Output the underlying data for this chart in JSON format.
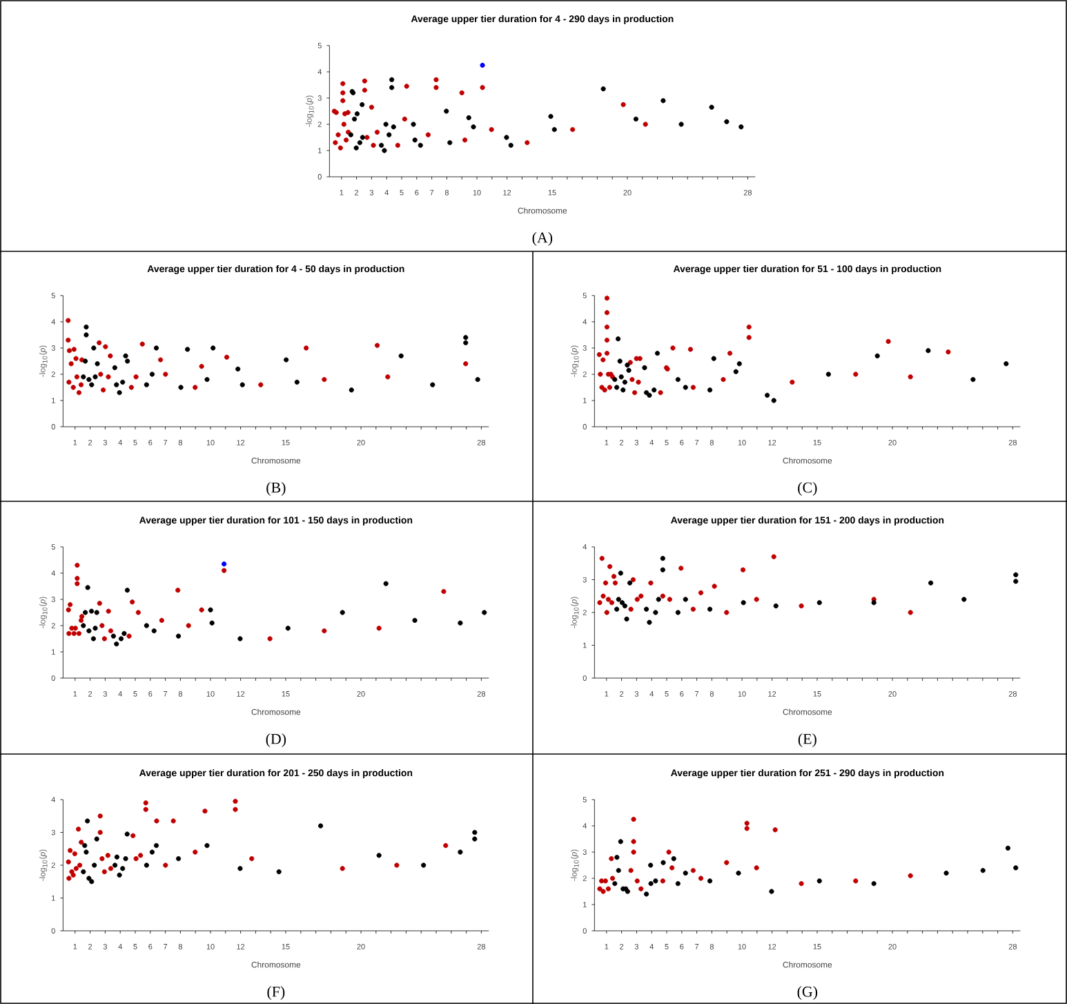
{
  "chart_data": [
    {
      "type": "scatter",
      "title": "Average upper tier duration for 4 - 290 days in production",
      "xlabel": "Chromosome",
      "ylabel": "-log$_{10}$(*p*)",
      "annotations": [
        "(A)"
      ],
      "marker": "circle",
      "xlim": [
        0.2,
        28.5
      ],
      "ylim": [
        0,
        5
      ],
      "yticks": [
        0,
        1,
        2,
        3,
        4,
        5
      ],
      "xticks": [
        1,
        2,
        3,
        4,
        5,
        6,
        7,
        8,
        {
          "value": 9,
          "label": null
        },
        10,
        {
          "value": 11,
          "label": null
        },
        12,
        {
          "value": 13,
          "label": null
        },
        {
          "value": 14,
          "label": null
        },
        15,
        {
          "value": 16,
          "label": null
        },
        {
          "value": 17,
          "label": null
        },
        {
          "value": 18,
          "label": null
        },
        {
          "value": 19,
          "label": null
        },
        20,
        {
          "value": 21,
          "label": null
        },
        {
          "value": 22,
          "label": null
        },
        {
          "value": 23,
          "label": null
        },
        {
          "value": 24,
          "label": null
        },
        {
          "value": 25,
          "label": null
        },
        {
          "value": 26,
          "label": null
        },
        {
          "value": 27,
          "label": null
        },
        28
      ],
      "series": [
        {
          "color": "#c00000",
          "x": [
            0.52,
            0.65,
            1.09,
            1.09,
            1.09,
            1.22,
            1.43,
            2.54,
            2.54,
            3.0,
            5.33,
            7.29,
            7.29,
            9.0,
            10.37,
            19.73,
            0.59,
            0.78,
            0.93,
            1.16,
            1.31,
            1.45,
            2.7,
            3.12,
            3.37,
            4.74,
            5.2,
            6.76,
            9.2,
            10.97,
            13.34,
            16.36,
            21.2
          ],
          "values": [
            2.5,
            2.45,
            3.55,
            3.2,
            2.9,
            2.4,
            2.45,
            3.65,
            3.3,
            2.65,
            3.45,
            3.7,
            3.4,
            3.2,
            3.4,
            2.75,
            1.3,
            1.6,
            1.1,
            2.0,
            1.4,
            1.7,
            1.5,
            1.2,
            1.7,
            1.2,
            2.2,
            1.6,
            1.4,
            1.8,
            1.3,
            1.8,
            2.0
          ]
        },
        {
          "color": "#000000",
          "x": [
            1.71,
            1.77,
            2.04,
            2.37,
            4.34,
            4.34,
            3.95,
            5.78,
            7.97,
            9.46,
            14.91,
            18.4,
            22.38,
            25.6,
            27.56,
            1.62,
            1.86,
            1.98,
            2.22,
            2.4,
            3.65,
            3.85,
            4.16,
            4.46,
            5.88,
            6.25,
            8.2,
            9.77,
            11.97,
            12.26,
            15.15,
            20.57,
            23.58,
            26.6
          ],
          "values": [
            3.25,
            3.2,
            2.4,
            2.75,
            3.7,
            3.4,
            2.0,
            2.0,
            2.5,
            2.25,
            2.3,
            3.35,
            2.9,
            2.65,
            1.9,
            1.6,
            2.2,
            1.1,
            1.3,
            1.5,
            1.2,
            1.0,
            1.6,
            1.9,
            1.4,
            1.2,
            1.3,
            1.9,
            1.5,
            1.2,
            1.8,
            2.2,
            2.0,
            2.1
          ]
        },
        {
          "color": "#0000ff",
          "x": [
            10.37
          ],
          "values": [
            4.25
          ]
        }
      ]
    },
    {
      "type": "scatter",
      "title": "Average upper tier duration for 4 - 50 days in production",
      "xlabel": "Chromosome",
      "ylabel": "-log$_{10}$(*p*)",
      "annotations": [
        "(B)"
      ],
      "marker": "circle",
      "xlim": [
        0.2,
        28.5
      ],
      "ylim": [
        0,
        5
      ],
      "yticks": [
        0,
        1,
        2,
        3,
        4,
        5
      ],
      "xticks": [
        1,
        2,
        3,
        4,
        5,
        6,
        7,
        8,
        {
          "value": 9,
          "label": null
        },
        10,
        {
          "value": 11,
          "label": null
        },
        12,
        {
          "value": 13,
          "label": null
        },
        {
          "value": 14,
          "label": null
        },
        15,
        {
          "value": 16,
          "label": null
        },
        {
          "value": 17,
          "label": null
        },
        {
          "value": 18,
          "label": null
        },
        {
          "value": 19,
          "label": null
        },
        20,
        {
          "value": 21,
          "label": null
        },
        {
          "value": 22,
          "label": null
        },
        {
          "value": 23,
          "label": null
        },
        {
          "value": 24,
          "label": null
        },
        {
          "value": 25,
          "label": null
        },
        {
          "value": 26,
          "label": null
        },
        {
          "value": 27,
          "label": null
        },
        28
      ],
      "series": [
        {
          "color": "#c00000",
          "x": [
            0.54,
            0.54,
            0.62,
            0.93,
            1.06,
            1.45,
            2.6,
            3.02,
            3.34,
            5.47,
            6.68,
            9.41,
            11.08,
            16.36,
            21.08,
            26.96,
            0.59,
            0.74,
            0.88,
            1.12,
            1.26,
            1.4,
            2.7,
            2.87,
            3.21,
            4.74,
            5.05,
            7.01,
            8.98,
            13.34,
            17.56,
            21.78
          ],
          "values": [
            4.05,
            3.3,
            2.9,
            2.95,
            2.6,
            2.55,
            3.2,
            3.05,
            2.7,
            3.15,
            2.55,
            2.3,
            2.65,
            3.0,
            3.1,
            2.4,
            1.7,
            2.4,
            1.5,
            1.9,
            1.3,
            1.6,
            2.0,
            1.4,
            1.9,
            1.5,
            1.9,
            2.0,
            1.5,
            1.6,
            1.8,
            1.9
          ]
        },
        {
          "color": "#000000",
          "x": [
            1.74,
            1.74,
            2.24,
            2.48,
            3.64,
            4.36,
            4.48,
            6.4,
            8.47,
            10.17,
            11.82,
            15.03,
            22.67,
            26.96,
            26.96,
            1.55,
            1.68,
            1.92,
            2.1,
            2.34,
            3.75,
            3.95,
            4.16,
            5.75,
            6.12,
            8.03,
            9.77,
            12.12,
            15.75,
            19.37,
            24.76,
            27.76
          ],
          "values": [
            3.8,
            3.5,
            3.0,
            2.4,
            2.25,
            2.7,
            2.5,
            3.0,
            2.95,
            3.0,
            2.2,
            2.55,
            2.7,
            3.4,
            3.2,
            1.9,
            2.5,
            1.8,
            1.6,
            1.9,
            1.6,
            1.3,
            1.7,
            1.6,
            2.0,
            1.5,
            1.8,
            1.6,
            1.7,
            1.4,
            1.6,
            1.8
          ]
        }
      ]
    },
    {
      "type": "scatter",
      "title": "Average upper tier duration for 51 - 100 days in production",
      "xlabel": "Chromosome",
      "ylabel": "-log$_{10}$(*p*)",
      "annotations": [
        "(C)"
      ],
      "marker": "circle",
      "xlim": [
        0.2,
        28.5
      ],
      "ylim": [
        0,
        5
      ],
      "yticks": [
        0,
        1,
        2,
        3,
        4,
        5
      ],
      "xticks": [
        1,
        2,
        3,
        4,
        5,
        6,
        7,
        8,
        {
          "value": 9,
          "label": null
        },
        10,
        {
          "value": 11,
          "label": null
        },
        12,
        {
          "value": 13,
          "label": null
        },
        {
          "value": 14,
          "label": null
        },
        15,
        {
          "value": 16,
          "label": null
        },
        {
          "value": 17,
          "label": null
        },
        {
          "value": 18,
          "label": null
        },
        {
          "value": 19,
          "label": null
        },
        20,
        {
          "value": 21,
          "label": null
        },
        {
          "value": 22,
          "label": null
        },
        {
          "value": 23,
          "label": null
        },
        {
          "value": 24,
          "label": null
        },
        {
          "value": 25,
          "label": null
        },
        {
          "value": 26,
          "label": null
        },
        {
          "value": 27,
          "label": null
        },
        28
      ],
      "series": [
        {
          "color": "#c00000",
          "x": [
            0.52,
            0.77,
            1.03,
            1.03,
            1.03,
            1.03,
            1.03,
            1.29,
            2.58,
            2.99,
            3.22,
            4.98,
            5.41,
            6.58,
            9.2,
            10.47,
            10.47,
            19.73,
            23.71,
            0.59,
            0.69,
            0.88,
            1.12,
            1.21,
            1.4,
            2.7,
            2.87,
            3.12,
            4.59,
            5.05,
            6.76,
            8.76,
            13.34,
            17.56,
            21.2
          ],
          "values": [
            2.75,
            2.55,
            4.9,
            4.35,
            3.8,
            3.3,
            2.8,
            2.0,
            2.45,
            2.6,
            2.6,
            2.25,
            3.0,
            2.95,
            2.8,
            3.8,
            3.4,
            3.25,
            2.85,
            2.0,
            1.5,
            1.4,
            2.0,
            1.5,
            1.9,
            1.8,
            1.3,
            1.7,
            1.3,
            2.2,
            1.5,
            1.8,
            1.7,
            2.0,
            1.9
          ]
        },
        {
          "color": "#000000",
          "x": [
            1.77,
            1.89,
            2.38,
            2.48,
            3.53,
            4.38,
            8.13,
            9.83,
            19.0,
            22.38,
            27.56,
            1.55,
            1.68,
            1.98,
            2.1,
            2.22,
            3.65,
            3.85,
            4.16,
            5.75,
            6.25,
            7.87,
            9.6,
            11.68,
            12.12,
            15.75,
            25.36
          ],
          "values": [
            3.35,
            2.5,
            2.35,
            2.15,
            2.25,
            2.8,
            2.6,
            2.4,
            2.7,
            2.9,
            2.4,
            1.8,
            1.5,
            1.9,
            1.4,
            1.7,
            1.3,
            1.2,
            1.4,
            1.8,
            1.5,
            1.4,
            2.1,
            1.2,
            1.0,
            2.0,
            1.8
          ]
        }
      ]
    },
    {
      "type": "scatter",
      "title": "Average upper tier duration for 101 - 150 days in production",
      "xlabel": "Chromosome",
      "ylabel": "-log$_{10}$(*p*)",
      "annotations": [
        "(D)"
      ],
      "marker": "circle",
      "xlim": [
        0.2,
        28.5
      ],
      "ylim": [
        0,
        5
      ],
      "yticks": [
        0,
        1,
        2,
        3,
        4,
        5
      ],
      "xticks": [
        1,
        2,
        3,
        4,
        5,
        6,
        7,
        8,
        {
          "value": 9,
          "label": null
        },
        10,
        {
          "value": 11,
          "label": null
        },
        12,
        {
          "value": 13,
          "label": null
        },
        {
          "value": 14,
          "label": null
        },
        15,
        {
          "value": 16,
          "label": null
        },
        {
          "value": 17,
          "label": null
        },
        {
          "value": 18,
          "label": null
        },
        {
          "value": 19,
          "label": null
        },
        20,
        {
          "value": 21,
          "label": null
        },
        {
          "value": 22,
          "label": null
        },
        {
          "value": 23,
          "label": null
        },
        {
          "value": 24,
          "label": null
        },
        {
          "value": 25,
          "label": null
        },
        {
          "value": 26,
          "label": null
        },
        {
          "value": 27,
          "label": null
        },
        28
      ],
      "series": [
        {
          "color": "#c00000",
          "x": [
            0.56,
            0.67,
            1.14,
            1.14,
            1.14,
            1.45,
            2.63,
            3.22,
            4.8,
            7.83,
            10.9,
            25.5,
            0.59,
            0.78,
            0.93,
            1.02,
            1.26,
            1.4,
            2.79,
            2.95,
            3.37,
            4.59,
            5.2,
            6.76,
            8.54,
            9.41,
            13.95,
            17.56,
            21.2
          ],
          "values": [
            2.6,
            2.8,
            4.3,
            3.8,
            3.6,
            2.35,
            2.85,
            2.55,
            2.9,
            3.35,
            4.1,
            3.3,
            1.7,
            1.9,
            1.7,
            1.9,
            1.7,
            2.2,
            2.0,
            1.5,
            1.8,
            1.6,
            2.5,
            2.2,
            2.0,
            2.6,
            1.5,
            1.8,
            1.9
          ]
        },
        {
          "color": "#000000",
          "x": [
            1.84,
            2.09,
            2.44,
            4.47,
            10.0,
            21.66,
            28.2,
            1.55,
            1.68,
            1.92,
            2.22,
            2.34,
            3.55,
            3.75,
            4.06,
            4.26,
            5.75,
            6.25,
            7.87,
            10.1,
            11.97,
            15.15,
            18.77,
            23.58,
            26.6
          ],
          "values": [
            3.45,
            2.55,
            2.5,
            3.35,
            2.6,
            3.6,
            2.5,
            2.0,
            2.5,
            1.8,
            1.5,
            1.9,
            1.6,
            1.3,
            1.5,
            1.7,
            2.0,
            1.8,
            1.6,
            2.1,
            1.5,
            1.9,
            2.5,
            2.2,
            2.1
          ]
        },
        {
          "color": "#0000ff",
          "x": [
            10.9
          ],
          "values": [
            4.35
          ]
        }
      ]
    },
    {
      "type": "scatter",
      "title": "Average upper tier duration for 151 - 200 days in production",
      "xlabel": "Chromosome",
      "ylabel": "-log$_{10}$(*p*)",
      "annotations": [
        "(E)"
      ],
      "marker": "circle",
      "xlim": [
        0.2,
        28.5
      ],
      "ylim": [
        0,
        4
      ],
      "yticks": [
        0,
        1,
        2,
        3,
        4
      ],
      "xticks": [
        1,
        2,
        3,
        4,
        5,
        6,
        7,
        8,
        {
          "value": 9,
          "label": null
        },
        10,
        {
          "value": 11,
          "label": null
        },
        12,
        {
          "value": 13,
          "label": null
        },
        {
          "value": 14,
          "label": null
        },
        15,
        {
          "value": 16,
          "label": null
        },
        {
          "value": 17,
          "label": null
        },
        {
          "value": 18,
          "label": null
        },
        {
          "value": 19,
          "label": null
        },
        20,
        {
          "value": 21,
          "label": null
        },
        {
          "value": 22,
          "label": null
        },
        {
          "value": 23,
          "label": null
        },
        {
          "value": 24,
          "label": null
        },
        {
          "value": 25,
          "label": null
        },
        {
          "value": 26,
          "label": null
        },
        {
          "value": 27,
          "label": null
        },
        28
      ],
      "series": [
        {
          "color": "#c00000",
          "x": [
            0.7,
            0.94,
            1.22,
            1.49,
            1.58,
            2.77,
            3.94,
            5.95,
            8.17,
            10.07,
            12.12,
            0.55,
            0.78,
            1.02,
            1.12,
            1.35,
            2.62,
            3.04,
            3.29,
            4.74,
            5.2,
            6.76,
            7.27,
            8.98,
            10.97,
            13.95,
            18.77,
            21.2
          ],
          "values": [
            3.65,
            2.9,
            3.4,
            3.1,
            2.9,
            3.0,
            2.9,
            3.35,
            2.8,
            3.3,
            3.7,
            2.3,
            2.5,
            2.0,
            2.4,
            2.3,
            2.1,
            2.4,
            2.5,
            2.5,
            2.4,
            2.1,
            2.6,
            2.0,
            2.4,
            2.2,
            2.4,
            2.0
          ]
        },
        {
          "color": "#000000",
          "x": [
            1.94,
            2.55,
            4.74,
            4.74,
            22.55,
            28.2,
            28.2,
            1.68,
            1.8,
            2.04,
            2.22,
            2.34,
            3.65,
            3.85,
            4.26,
            4.46,
            5.75,
            6.25,
            7.87,
            10.1,
            12.26,
            15.15,
            18.77,
            24.76
          ],
          "values": [
            3.2,
            2.9,
            3.65,
            3.3,
            2.9,
            3.15,
            2.95,
            2.1,
            2.4,
            2.3,
            2.2,
            1.8,
            2.1,
            1.7,
            2.0,
            2.4,
            2.0,
            2.4,
            2.1,
            2.3,
            2.2,
            2.3,
            2.3,
            2.4
          ]
        }
      ]
    },
    {
      "type": "scatter",
      "title": "Average upper tier duration for 201 - 250 days in production",
      "xlabel": "Chromosome",
      "ylabel": "-log$_{10}$(*p*)",
      "annotations": [
        "(F)"
      ],
      "marker": "circle",
      "xlim": [
        0.2,
        28.5
      ],
      "ylim": [
        0,
        4
      ],
      "yticks": [
        0,
        1,
        2,
        3,
        4
      ],
      "xticks": [
        1,
        2,
        3,
        4,
        5,
        6,
        7,
        8,
        {
          "value": 9,
          "label": null
        },
        10,
        {
          "value": 11,
          "label": null
        },
        12,
        {
          "value": 13,
          "label": null
        },
        {
          "value": 14,
          "label": null
        },
        15,
        {
          "value": 16,
          "label": null
        },
        {
          "value": 17,
          "label": null
        },
        {
          "value": 18,
          "label": null
        },
        {
          "value": 19,
          "label": null
        },
        20,
        {
          "value": 21,
          "label": null
        },
        {
          "value": 22,
          "label": null
        },
        {
          "value": 23,
          "label": null
        },
        {
          "value": 24,
          "label": null
        },
        {
          "value": 25,
          "label": null
        },
        {
          "value": 26,
          "label": null
        },
        {
          "value": 27,
          "label": null
        },
        28
      ],
      "series": [
        {
          "color": "#c00000",
          "x": [
            0.56,
            0.67,
            0.98,
            1.22,
            1.41,
            2.67,
            2.67,
            3.18,
            4.85,
            5.7,
            5.7,
            6.42,
            7.53,
            9.63,
            11.65,
            11.65,
            25.63,
            0.59,
            0.78,
            0.88,
            1.07,
            1.31,
            2.79,
            2.95,
            3.37,
            5.05,
            5.35,
            7.01,
            8.98,
            12.74,
            18.77,
            22.38
          ],
          "values": [
            2.1,
            2.45,
            2.35,
            3.1,
            2.7,
            3.5,
            3.0,
            2.3,
            2.9,
            3.9,
            3.7,
            3.35,
            3.35,
            3.65,
            3.95,
            3.7,
            2.6,
            1.6,
            1.8,
            1.7,
            1.9,
            2.0,
            2.2,
            1.8,
            1.9,
            2.2,
            2.3,
            2.0,
            2.4,
            2.2,
            1.9,
            2.0
          ]
        },
        {
          "color": "#000000",
          "x": [
            1.82,
            1.64,
            2.44,
            3.78,
            4.46,
            6.4,
            17.32,
            27.56,
            27.56,
            1.55,
            1.74,
            1.92,
            2.1,
            2.28,
            3.65,
            3.95,
            4.16,
            4.36,
            5.75,
            6.12,
            7.87,
            9.77,
            11.97,
            14.55,
            21.2,
            24.16,
            26.6
          ],
          "values": [
            3.35,
            2.6,
            2.8,
            2.25,
            2.95,
            2.6,
            3.2,
            3.0,
            2.8,
            1.8,
            2.4,
            1.6,
            1.5,
            2.0,
            2.0,
            1.7,
            1.9,
            2.2,
            2.0,
            2.4,
            2.2,
            2.6,
            1.9,
            1.8,
            2.3,
            2.0,
            2.4
          ]
        }
      ]
    },
    {
      "type": "scatter",
      "title": "Average upper tier duration for 251 - 290 days in production",
      "xlabel": "Chromosome",
      "ylabel": "-log$_{10}$(*p*)",
      "annotations": [
        "(G)"
      ],
      "marker": "circle",
      "xlim": [
        0.2,
        28.5
      ],
      "ylim": [
        0,
        5
      ],
      "yticks": [
        0,
        1,
        2,
        3,
        4,
        5
      ],
      "xticks": [
        1,
        2,
        3,
        4,
        5,
        6,
        7,
        8,
        {
          "value": 9,
          "label": null
        },
        10,
        {
          "value": 11,
          "label": null
        },
        12,
        {
          "value": 13,
          "label": null
        },
        {
          "value": 14,
          "label": null
        },
        15,
        {
          "value": 16,
          "label": null
        },
        {
          "value": 17,
          "label": null
        },
        {
          "value": 18,
          "label": null
        },
        {
          "value": 19,
          "label": null
        },
        20,
        {
          "value": 21,
          "label": null
        },
        {
          "value": 22,
          "label": null
        },
        {
          "value": 23,
          "label": null
        },
        {
          "value": 24,
          "label": null
        },
        {
          "value": 25,
          "label": null
        },
        {
          "value": 26,
          "label": null
        },
        {
          "value": 27,
          "label": null
        },
        28
      ],
      "series": [
        {
          "color": "#c00000",
          "x": [
            0.67,
            1.32,
            2.8,
            2.8,
            2.8,
            5.14,
            10.33,
            10.33,
            12.21,
            0.55,
            0.78,
            0.93,
            1.12,
            1.4,
            2.62,
            3.04,
            3.29,
            4.74,
            5.35,
            6.76,
            7.27,
            8.98,
            10.97,
            13.95,
            17.56,
            21.2
          ],
          "values": [
            1.9,
            2.75,
            4.25,
            3.4,
            3.0,
            3.0,
            4.1,
            3.9,
            3.85,
            1.6,
            1.5,
            1.9,
            1.6,
            2.0,
            2.3,
            1.9,
            1.6,
            1.9,
            2.4,
            2.3,
            2.0,
            2.6,
            2.4,
            1.8,
            1.9,
            2.1
          ]
        },
        {
          "color": "#000000",
          "x": [
            1.94,
            1.69,
            3.93,
            4.77,
            5.47,
            27.68,
            28.2,
            1.55,
            1.8,
            2.1,
            2.28,
            2.4,
            3.65,
            3.95,
            4.26,
            5.75,
            6.25,
            7.87,
            9.77,
            11.97,
            15.15,
            18.77,
            23.58,
            26.02
          ],
          "values": [
            3.4,
            2.8,
            2.5,
            2.6,
            2.75,
            3.15,
            2.4,
            1.8,
            2.3,
            1.6,
            1.6,
            1.5,
            1.4,
            1.8,
            1.9,
            1.8,
            2.2,
            1.9,
            2.2,
            1.5,
            1.9,
            1.8,
            2.2,
            2.3
          ]
        }
      ]
    }
  ]
}
